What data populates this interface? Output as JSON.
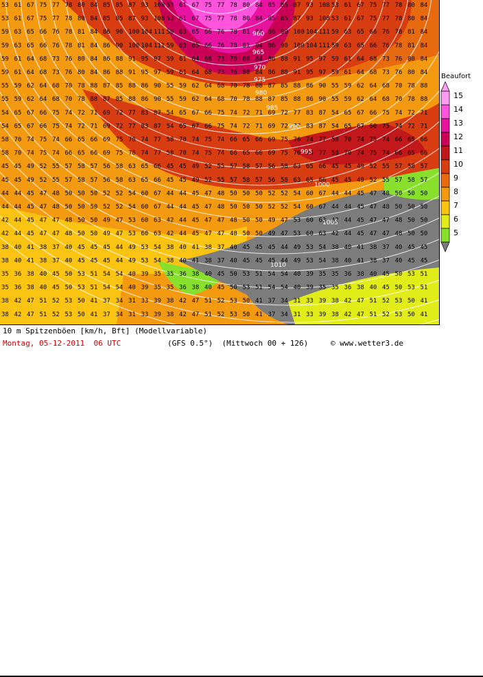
{
  "legend": {
    "title": "Beaufort",
    "levels": [
      {
        "bft": 15,
        "label": "15",
        "color": "#ff9bf0"
      },
      {
        "bft": 14,
        "label": "14",
        "color": "#ff55dd"
      },
      {
        "bft": 13,
        "label": "13",
        "color": "#e8149f"
      },
      {
        "bft": 12,
        "label": "12",
        "color": "#c90055"
      },
      {
        "bft": 11,
        "label": "11",
        "color": "#c2181c"
      },
      {
        "bft": 10,
        "label": "10",
        "color": "#d83d12"
      },
      {
        "bft": 9,
        "label": "9",
        "color": "#e86a0e"
      },
      {
        "bft": 8,
        "label": "8",
        "color": "#f49a10"
      },
      {
        "bft": 7,
        "label": "7",
        "color": "#fbc412"
      },
      {
        "bft": 6,
        "label": "6",
        "color": "#e2ec18"
      },
      {
        "bft": 5,
        "label": "5",
        "color": "#89e02c"
      }
    ],
    "below_color": "#7c7c7c"
  },
  "map": {
    "land_color": "#8a8a8a",
    "isobar_labels": [
      "960",
      "965",
      "970",
      "975",
      "980",
      "985",
      "990",
      "995",
      "1000",
      "1005",
      "1010"
    ],
    "sample_gust_values": [
      [
        "53",
        "61",
        "67",
        "75",
        "77",
        "78",
        "80",
        "84",
        "85",
        "85",
        "87",
        "93",
        "108"
      ],
      [
        "59",
        "63",
        "65",
        "66",
        "76",
        "78",
        "81",
        "84",
        "86",
        "90",
        "100",
        "104",
        "111"
      ],
      [
        "59",
        "61",
        "64",
        "68",
        "73",
        "76",
        "80",
        "84",
        "86",
        "88",
        "91",
        "95",
        "97"
      ],
      [
        "55",
        "59",
        "62",
        "64",
        "68",
        "70",
        "78",
        "88",
        "87",
        "85",
        "88",
        "86",
        "90"
      ],
      [
        "54",
        "65",
        "67",
        "66",
        "75",
        "74",
        "72",
        "71",
        "69",
        "72",
        "77",
        "83",
        "87"
      ],
      [
        "58",
        "70",
        "74",
        "75",
        "74",
        "66",
        "65",
        "66",
        "69",
        "75",
        "76",
        "74",
        "77"
      ],
      [
        "45",
        "45",
        "49",
        "52",
        "55",
        "57",
        "58",
        "57",
        "56",
        "58",
        "63",
        "65",
        "66"
      ],
      [
        "44",
        "44",
        "45",
        "47",
        "48",
        "50",
        "50",
        "50",
        "52",
        "52",
        "54",
        "60",
        "67"
      ],
      [
        "42",
        "44",
        "45",
        "47",
        "47",
        "48",
        "50",
        "50",
        "49",
        "47",
        "53",
        "60",
        "63"
      ],
      [
        "38",
        "40",
        "41",
        "38",
        "37",
        "40",
        "45",
        "45",
        "45",
        "44",
        "49",
        "53",
        "54"
      ],
      [
        "35",
        "36",
        "38",
        "40",
        "45",
        "50",
        "53",
        "51",
        "54",
        "54",
        "40",
        "39",
        "35"
      ],
      [
        "38",
        "42",
        "47",
        "51",
        "52",
        "53",
        "50",
        "41",
        "37",
        "34",
        "31",
        "33",
        "39"
      ]
    ]
  },
  "footer": {
    "caption": "10 m Spitzenböen [km/h, Bft] (Modellvariable)",
    "date": "Montag, 05-12-2011  06 UTC",
    "model": "(GFS 0.5°)  (Mittwoch 00 + 126)",
    "copyright": "© www.wetter3.de"
  }
}
